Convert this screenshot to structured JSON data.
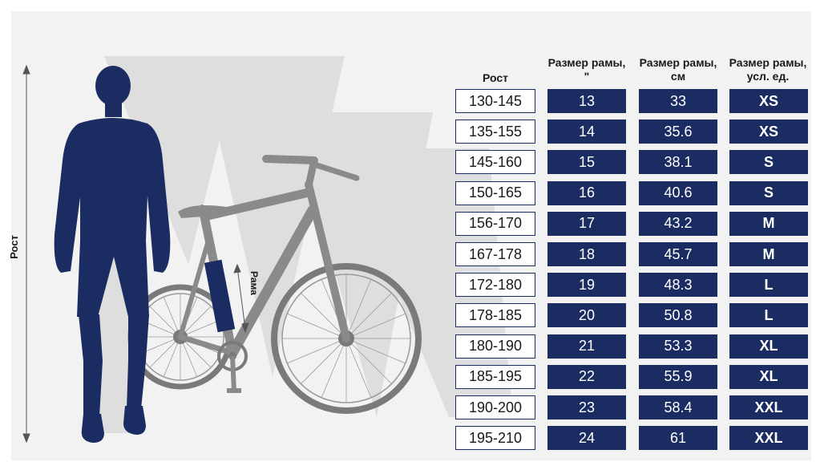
{
  "axis_labels": {
    "height": "Рост",
    "frame": "Рама"
  },
  "headers": {
    "height": "Рост",
    "frame_inch": [
      "Размер рамы,",
      "\""
    ],
    "frame_cm": [
      "Размер рамы,",
      "см"
    ],
    "frame_conventional": [
      "Размер рамы,",
      "усл. ед."
    ]
  },
  "rows": [
    {
      "height": "130-145",
      "inch": "13",
      "cm": "33",
      "size": "XS"
    },
    {
      "height": "135-155",
      "inch": "14",
      "cm": "35.6",
      "size": "XS"
    },
    {
      "height": "145-160",
      "inch": "15",
      "cm": "38.1",
      "size": "S"
    },
    {
      "height": "150-165",
      "inch": "16",
      "cm": "40.6",
      "size": "S"
    },
    {
      "height": "156-170",
      "inch": "17",
      "cm": "43.2",
      "size": "M"
    },
    {
      "height": "167-178",
      "inch": "18",
      "cm": "45.7",
      "size": "M"
    },
    {
      "height": "172-180",
      "inch": "19",
      "cm": "48.3",
      "size": "L"
    },
    {
      "height": "178-185",
      "inch": "20",
      "cm": "50.8",
      "size": "L"
    },
    {
      "height": "180-190",
      "inch": "21",
      "cm": "53.3",
      "size": "XL"
    },
    {
      "height": "185-195",
      "inch": "22",
      "cm": "55.9",
      "size": "XL"
    },
    {
      "height": "190-200",
      "inch": "23",
      "cm": "58.4",
      "size": "XXL"
    },
    {
      "height": "195-210",
      "inch": "24",
      "cm": "61",
      "size": "XXL"
    }
  ],
  "colors": {
    "navy": "#1b2c63",
    "bike_gray": "#8a8a8a",
    "watermark": "#dedede",
    "background": "#f2f2f2"
  },
  "icons": {
    "person": "person-silhouette-icon",
    "bike": "bicycle-icon",
    "logo": "watermark-logo"
  }
}
